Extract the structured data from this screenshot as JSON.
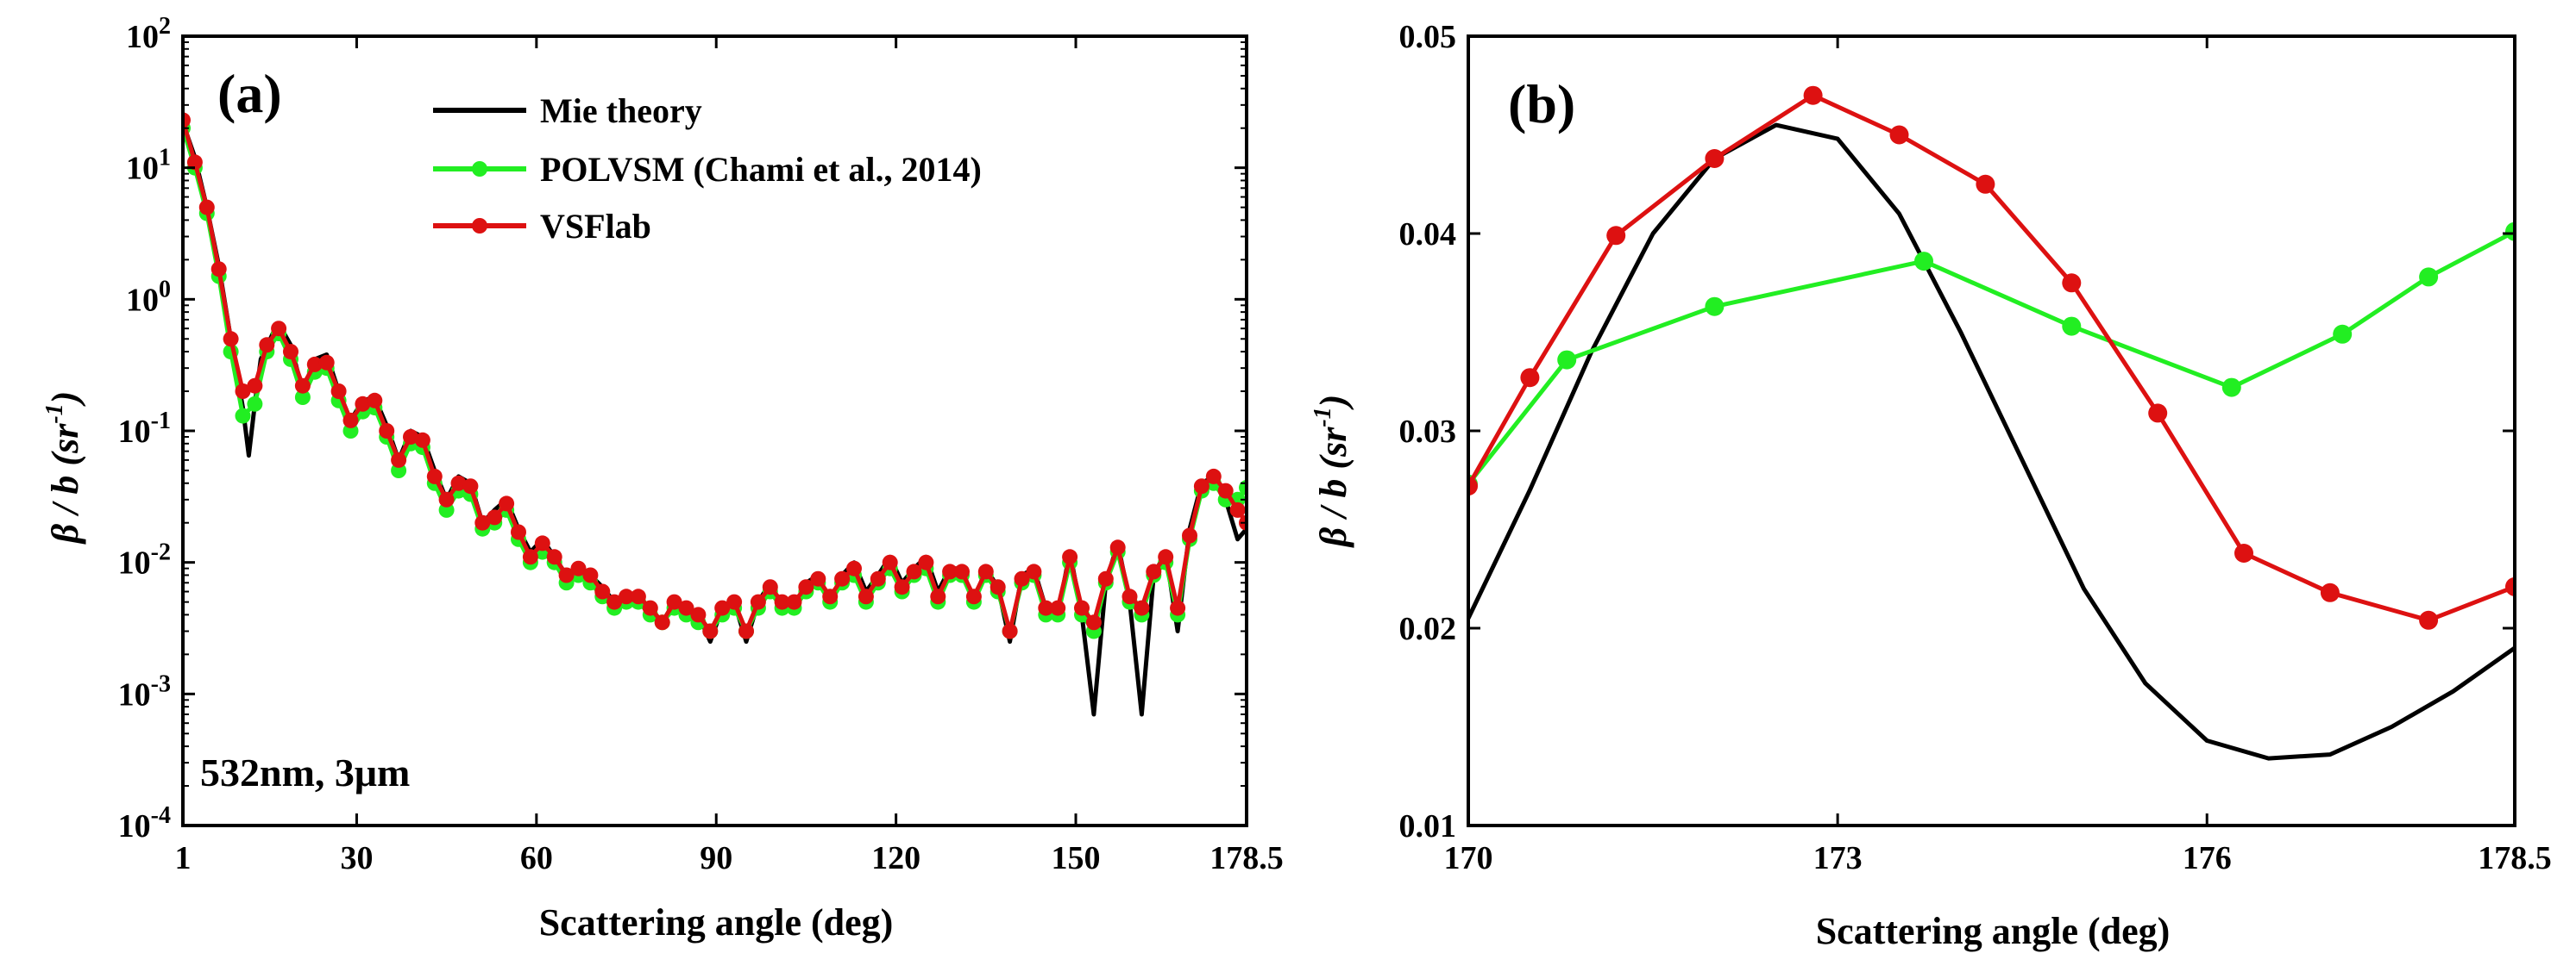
{
  "chart_data": [
    {
      "panel": "(a)",
      "type": "line",
      "yscale": "log",
      "xlabel": "Scattering angle (deg)",
      "ylabel": {
        "main": "β / b (sr",
        "sup": "-1",
        "end": ")"
      },
      "xlim": [
        1,
        178.5
      ],
      "ylim": [
        0.0001,
        100
      ],
      "xticks": [
        1,
        30,
        60,
        90,
        120,
        150,
        178.5
      ],
      "xtick_labels": [
        "1",
        "30",
        "60",
        "90",
        "120",
        "150",
        "178.5"
      ],
      "yticks": [
        {
          "base": "10",
          "exp": "-4",
          "value": 0.0001
        },
        {
          "base": "10",
          "exp": "-3",
          "value": 0.001
        },
        {
          "base": "10",
          "exp": "-2",
          "value": 0.01
        },
        {
          "base": "10",
          "exp": "-1",
          "value": 0.1
        },
        {
          "base": "10",
          "exp": "0",
          "value": 1
        },
        {
          "base": "10",
          "exp": "1",
          "value": 10
        },
        {
          "base": "10",
          "exp": "2",
          "value": 100
        }
      ],
      "annotation": "532nm, 3μm",
      "legend": [
        {
          "label": "Mie theory",
          "color": "#000000",
          "marker": false
        },
        {
          "label": "POLVSM (Chami et al., 2014)",
          "color": "#22ee22",
          "marker": true
        },
        {
          "label": "VSFlab",
          "color": "#dd1111",
          "marker": true
        }
      ],
      "series": [
        {
          "name": "Mie theory",
          "color": "#000000",
          "x": [
            1,
            3,
            5,
            7,
            9,
            11,
            12,
            13,
            14,
            16,
            17,
            19,
            21,
            23,
            25,
            27,
            29,
            31,
            33,
            35,
            37,
            39,
            41,
            43,
            45,
            47,
            49,
            51,
            53,
            55,
            57,
            59,
            61,
            63,
            65,
            67,
            69,
            71,
            73,
            75,
            77,
            79,
            81,
            83,
            85,
            87,
            89,
            91,
            93,
            95,
            97,
            99,
            101,
            103,
            105,
            107,
            109,
            111,
            113,
            115,
            117,
            119,
            121,
            123,
            125,
            127,
            129,
            131,
            133,
            135,
            137,
            139,
            141,
            143,
            145,
            147,
            149,
            151,
            153,
            155,
            157,
            159,
            161,
            163,
            165,
            167,
            169,
            171,
            173,
            175,
            177,
            178.5
          ],
          "y": [
            22,
            12,
            5,
            1.8,
            0.5,
            0.15,
            0.065,
            0.16,
            0.35,
            0.55,
            0.65,
            0.45,
            0.2,
            0.35,
            0.38,
            0.2,
            0.12,
            0.17,
            0.18,
            0.11,
            0.06,
            0.1,
            0.09,
            0.05,
            0.03,
            0.045,
            0.04,
            0.02,
            0.025,
            0.03,
            0.018,
            0.012,
            0.015,
            0.011,
            0.008,
            0.009,
            0.008,
            0.0065,
            0.005,
            0.0055,
            0.0055,
            0.0045,
            0.0035,
            0.005,
            0.0045,
            0.004,
            0.0025,
            0.0045,
            0.005,
            0.0025,
            0.005,
            0.007,
            0.0045,
            0.0045,
            0.007,
            0.008,
            0.005,
            0.008,
            0.01,
            0.006,
            0.008,
            0.011,
            0.007,
            0.009,
            0.011,
            0.006,
            0.009,
            0.009,
            0.005,
            0.009,
            0.0065,
            0.0025,
            0.008,
            0.009,
            0.0045,
            0.004,
            0.012,
            0.004,
            0.0007,
            0.007,
            0.014,
            0.005,
            0.0007,
            0.008,
            0.012,
            0.003,
            0.018,
            0.04,
            0.045,
            0.03,
            0.015,
            0.018
          ]
        },
        {
          "name": "POLVSM (Chami et al., 2014)",
          "color": "#22ee22",
          "x": [
            1,
            3,
            5,
            7,
            9,
            11,
            13,
            15,
            17,
            19,
            21,
            23,
            25,
            27,
            29,
            31,
            33,
            35,
            37,
            39,
            41,
            43,
            45,
            47,
            49,
            51,
            53,
            55,
            57,
            59,
            61,
            63,
            65,
            67,
            69,
            71,
            73,
            75,
            77,
            79,
            81,
            83,
            85,
            87,
            89,
            91,
            93,
            95,
            97,
            99,
            101,
            103,
            105,
            107,
            109,
            111,
            113,
            115,
            117,
            119,
            121,
            123,
            125,
            127,
            129,
            131,
            133,
            135,
            137,
            139,
            141,
            143,
            145,
            147,
            149,
            151,
            153,
            155,
            157,
            159,
            161,
            163,
            165,
            167,
            169,
            171,
            173,
            175,
            177,
            178.5
          ],
          "y": [
            20,
            10,
            4.5,
            1.5,
            0.4,
            0.13,
            0.16,
            0.4,
            0.55,
            0.35,
            0.18,
            0.28,
            0.3,
            0.17,
            0.1,
            0.14,
            0.15,
            0.09,
            0.05,
            0.08,
            0.075,
            0.04,
            0.025,
            0.035,
            0.033,
            0.018,
            0.02,
            0.025,
            0.015,
            0.01,
            0.012,
            0.01,
            0.007,
            0.008,
            0.007,
            0.0055,
            0.0045,
            0.005,
            0.005,
            0.004,
            0.0035,
            0.0045,
            0.004,
            0.0035,
            0.003,
            0.004,
            0.0045,
            0.003,
            0.0045,
            0.006,
            0.0045,
            0.0045,
            0.006,
            0.007,
            0.005,
            0.007,
            0.008,
            0.005,
            0.007,
            0.009,
            0.006,
            0.008,
            0.009,
            0.005,
            0.008,
            0.008,
            0.005,
            0.008,
            0.006,
            0.003,
            0.007,
            0.008,
            0.004,
            0.004,
            0.01,
            0.004,
            0.003,
            0.007,
            0.012,
            0.005,
            0.004,
            0.008,
            0.01,
            0.004,
            0.015,
            0.035,
            0.04,
            0.03,
            0.03,
            0.037
          ]
        },
        {
          "name": "VSFlab",
          "color": "#dd1111",
          "x": [
            1,
            3,
            5,
            7,
            9,
            11,
            13,
            15,
            17,
            19,
            21,
            23,
            25,
            27,
            29,
            31,
            33,
            35,
            37,
            39,
            41,
            43,
            45,
            47,
            49,
            51,
            53,
            55,
            57,
            59,
            61,
            63,
            65,
            67,
            69,
            71,
            73,
            75,
            77,
            79,
            81,
            83,
            85,
            87,
            89,
            91,
            93,
            95,
            97,
            99,
            101,
            103,
            105,
            107,
            109,
            111,
            113,
            115,
            117,
            119,
            121,
            123,
            125,
            127,
            129,
            131,
            133,
            135,
            137,
            139,
            141,
            143,
            145,
            147,
            149,
            151,
            153,
            155,
            157,
            159,
            161,
            163,
            165,
            167,
            169,
            171,
            173,
            175,
            177,
            178.5
          ],
          "y": [
            23,
            11,
            5,
            1.7,
            0.5,
            0.2,
            0.22,
            0.45,
            0.6,
            0.4,
            0.22,
            0.32,
            0.33,
            0.2,
            0.12,
            0.16,
            0.17,
            0.1,
            0.06,
            0.09,
            0.085,
            0.045,
            0.03,
            0.04,
            0.038,
            0.02,
            0.022,
            0.028,
            0.017,
            0.011,
            0.014,
            0.011,
            0.008,
            0.009,
            0.008,
            0.006,
            0.005,
            0.0055,
            0.0055,
            0.0045,
            0.0035,
            0.005,
            0.0045,
            0.004,
            0.003,
            0.0045,
            0.005,
            0.003,
            0.005,
            0.0065,
            0.005,
            0.005,
            0.0065,
            0.0075,
            0.0055,
            0.0075,
            0.009,
            0.0055,
            0.0075,
            0.01,
            0.0065,
            0.0085,
            0.01,
            0.0055,
            0.0085,
            0.0085,
            0.0055,
            0.0085,
            0.0065,
            0.003,
            0.0075,
            0.0085,
            0.0045,
            0.0045,
            0.011,
            0.0045,
            0.0035,
            0.0075,
            0.013,
            0.0055,
            0.0045,
            0.0085,
            0.011,
            0.0045,
            0.016,
            0.038,
            0.045,
            0.035,
            0.025,
            0.02
          ]
        }
      ]
    },
    {
      "panel": "(b)",
      "type": "line",
      "yscale": "linear",
      "xlabel": "Scattering angle (deg)",
      "ylabel": {
        "main": "β / b (sr",
        "sup": "-1",
        "end": ")"
      },
      "xlim": [
        170,
        178.5
      ],
      "ylim": [
        0.01,
        0.05
      ],
      "xticks": [
        170,
        173,
        176,
        178.5
      ],
      "xtick_labels": [
        "170",
        "173",
        "176",
        "178.5"
      ],
      "yticks": [
        0.01,
        0.02,
        0.03,
        0.04,
        0.05
      ],
      "ytick_labels": [
        "0.01",
        "0.02",
        "0.03",
        "0.04",
        "0.05"
      ],
      "series": [
        {
          "name": "Mie theory",
          "color": "#000000",
          "x": [
            170,
            170.5,
            171,
            171.5,
            172,
            172.5,
            173,
            173.5,
            174,
            174.5,
            175,
            175.5,
            176,
            176.5,
            177,
            177.5,
            178,
            178.5
          ],
          "y": [
            0.0205,
            0.027,
            0.034,
            0.04,
            0.0438,
            0.0455,
            0.0448,
            0.041,
            0.035,
            0.0285,
            0.022,
            0.0172,
            0.0143,
            0.0134,
            0.0136,
            0.015,
            0.0168,
            0.019
          ]
        },
        {
          "name": "POLVSM (Chami et al., 2014)",
          "color": "#22ee22",
          "x": [
            170,
            170.8,
            172.0,
            173.7,
            174.9,
            176.2,
            177.1,
            177.8,
            178.5
          ],
          "y": [
            0.0273,
            0.0336,
            0.0363,
            0.0386,
            0.0353,
            0.0322,
            0.0349,
            0.0378,
            0.0401
          ]
        },
        {
          "name": "VSFlab",
          "color": "#dd1111",
          "x": [
            170,
            170.5,
            171.2,
            172.0,
            172.8,
            173.5,
            174.2,
            174.9,
            175.6,
            176.3,
            177.0,
            177.8,
            178.5
          ],
          "y": [
            0.0272,
            0.0327,
            0.0399,
            0.0438,
            0.047,
            0.045,
            0.0425,
            0.0375,
            0.0309,
            0.0238,
            0.0218,
            0.0204,
            0.0221
          ]
        }
      ]
    }
  ]
}
